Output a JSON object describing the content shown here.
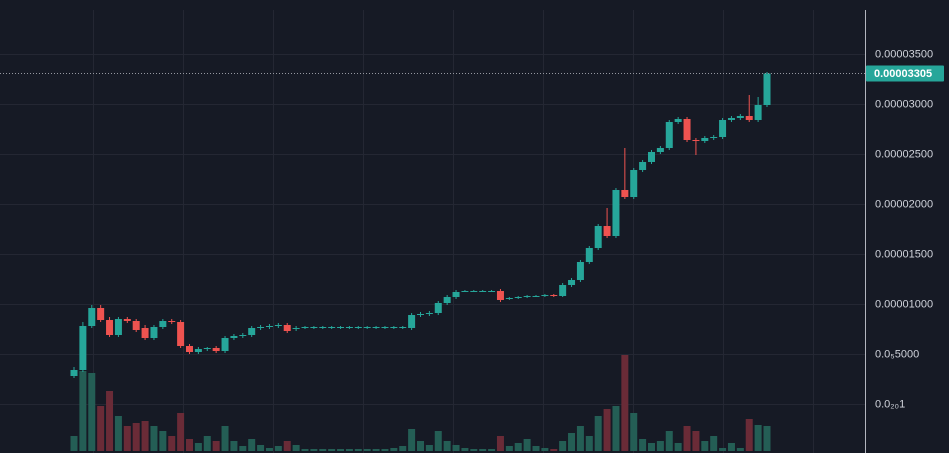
{
  "chart_data": {
    "type": "candlestick",
    "up_color": "#26a69a",
    "down_color": "#ef5350",
    "volume_up_color": "#245e55",
    "volume_down_color": "#6a2b37",
    "grid": true,
    "ylim": [
      -4.9e-06,
      4.04e-05
    ],
    "yticks": [
      {
        "value": 3.5e-05,
        "label": "0.00003500"
      },
      {
        "value": 3e-05,
        "label": "0.00003000"
      },
      {
        "value": 2.5e-05,
        "label": "0.00002500"
      },
      {
        "value": 2e-05,
        "label": "0.00002000"
      },
      {
        "value": 1.5e-05,
        "label": "0.00001500"
      },
      {
        "value": 1e-05,
        "label": "0.00001000"
      },
      {
        "value": 5e-06,
        "label": "0.0₅5000"
      },
      {
        "value": 1e-21,
        "label": "0.0₂₀1"
      }
    ],
    "price_line": {
      "value": 3.305e-05,
      "label": "0.00003305"
    },
    "open": [
      2.8e-06,
      3.4e-06,
      7.8e-06,
      9.6e-06,
      8.4e-06,
      6.9e-06,
      8.5e-06,
      8.3e-06,
      7.6e-06,
      6.6e-06,
      7.7e-06,
      8.3e-06,
      8.2e-06,
      5.8e-06,
      5.2e-06,
      5.5e-06,
      5.6e-06,
      5.3e-06,
      6.6e-06,
      6.8e-06,
      6.9e-06,
      7.6e-06,
      7.7e-06,
      7.8e-06,
      7.9e-06,
      7.5e-06,
      7.6e-06,
      7.6e-06,
      7.6e-06,
      7.6e-06,
      7.6e-06,
      7.6e-06,
      7.6e-06,
      7.6e-06,
      7.6e-06,
      7.6e-06,
      7.6e-06,
      7.6e-06,
      7.6e-06,
      8.9e-06,
      9e-06,
      9.1e-06,
      1.01e-05,
      1.07e-05,
      1.13e-05,
      1.13e-05,
      1.13e-05,
      1.13e-05,
      1.13e-05,
      1.05e-05,
      1.06e-05,
      1.07e-05,
      1.08e-05,
      1.08e-05,
      1.09e-05,
      1.08e-05,
      1.19e-05,
      1.24e-05,
      1.42e-05,
      1.56e-05,
      1.78e-05,
      1.68e-05,
      2.14e-05,
      2.07e-05,
      2.34e-05,
      2.42e-05,
      2.52e-05,
      2.56e-05,
      2.82e-05,
      2.85e-05,
      2.64e-05,
      2.63e-05,
      2.66e-05,
      2.67e-05,
      2.84e-05,
      2.86e-05,
      2.88e-05,
      2.84e-05,
      2.99e-05
    ],
    "close": [
      3.4e-06,
      7.8e-06,
      9.6e-06,
      8.4e-06,
      6.9e-06,
      8.5e-06,
      8.3e-06,
      7.4e-06,
      6.6e-06,
      7.7e-06,
      8.3e-06,
      8.2e-06,
      5.8e-06,
      5.2e-06,
      5.5e-06,
      5.6e-06,
      5.3e-06,
      6.6e-06,
      6.8e-06,
      6.9e-06,
      7.6e-06,
      7.7e-06,
      7.8e-06,
      7.9e-06,
      7.3e-06,
      7.6e-06,
      7.7e-06,
      7.7e-06,
      7.7e-06,
      7.7e-06,
      7.7e-06,
      7.7e-06,
      7.7e-06,
      7.7e-06,
      7.7e-06,
      7.7e-06,
      7.7e-06,
      7.7e-06,
      8.9e-06,
      9e-06,
      9.1e-06,
      1.01e-05,
      1.07e-05,
      1.12e-05,
      1.13e-05,
      1.13e-05,
      1.13e-05,
      1.13e-05,
      1.04e-05,
      1.06e-05,
      1.07e-05,
      1.08e-05,
      1.08e-05,
      1.09e-05,
      1.08e-05,
      1.19e-05,
      1.24e-05,
      1.42e-05,
      1.56e-05,
      1.78e-05,
      1.68e-05,
      2.14e-05,
      2.07e-05,
      2.34e-05,
      2.42e-05,
      2.52e-05,
      2.56e-05,
      2.82e-05,
      2.85e-05,
      2.64e-05,
      2.63e-05,
      2.66e-05,
      2.67e-05,
      2.84e-05,
      2.86e-05,
      2.88e-05,
      2.84e-05,
      2.99e-05,
      3.305e-05
    ],
    "high": [
      3.7e-06,
      8.2e-06,
      9.9e-06,
      9.9e-06,
      8.7e-06,
      8.7e-06,
      8.7e-06,
      8.5e-06,
      7.9e-06,
      7.9e-06,
      8.5e-06,
      8.5e-06,
      8.4e-06,
      6e-06,
      5.7e-06,
      5.7e-06,
      5.8e-06,
      6.8e-06,
      7e-06,
      7.1e-06,
      7.8e-06,
      7.9e-06,
      8e-06,
      8.1e-06,
      8.1e-06,
      7.8e-06,
      7.8e-06,
      7.8e-06,
      7.8e-06,
      7.8e-06,
      7.8e-06,
      7.8e-06,
      7.8e-06,
      7.8e-06,
      7.8e-06,
      7.8e-06,
      7.8e-06,
      7.8e-06,
      9.1e-06,
      9.2e-06,
      9.3e-06,
      1.03e-05,
      1.09e-05,
      1.14e-05,
      1.14e-05,
      1.14e-05,
      1.14e-05,
      1.14e-05,
      1.15e-05,
      1.07e-05,
      1.08e-05,
      1.09e-05,
      1.09e-05,
      1.1e-05,
      1.1e-05,
      1.21e-05,
      1.26e-05,
      1.44e-05,
      1.58e-05,
      1.8e-05,
      1.96e-05,
      2.16e-05,
      2.56e-05,
      2.36e-05,
      2.44e-05,
      2.54e-05,
      2.58e-05,
      2.84e-05,
      2.87e-05,
      2.87e-05,
      2.66e-05,
      2.68e-05,
      2.69e-05,
      2.86e-05,
      2.88e-05,
      2.9e-05,
      3.09e-05,
      3.07e-05,
      3.32e-05
    ],
    "low": [
      2.6e-06,
      3.2e-06,
      7.6e-06,
      8.2e-06,
      6.7e-06,
      6.7e-06,
      8.1e-06,
      7.2e-06,
      6.4e-06,
      6.4e-06,
      7.5e-06,
      8e-06,
      5.6e-06,
      5e-06,
      5e-06,
      5.3e-06,
      5.1e-06,
      5.1e-06,
      6.4e-06,
      6.6e-06,
      6.7e-06,
      7.4e-06,
      7.5e-06,
      7.6e-06,
      7.1e-06,
      7.3e-06,
      7.5e-06,
      7.5e-06,
      7.5e-06,
      7.5e-06,
      7.5e-06,
      7.5e-06,
      7.5e-06,
      7.5e-06,
      7.5e-06,
      7.5e-06,
      7.5e-06,
      7.5e-06,
      7.4e-06,
      8.7e-06,
      8.8e-06,
      8.9e-06,
      9.9e-06,
      1.05e-05,
      1.12e-05,
      1.12e-05,
      1.12e-05,
      1.12e-05,
      1.02e-05,
      1.04e-05,
      1.05e-05,
      1.06e-05,
      1.07e-05,
      1.07e-05,
      1.07e-05,
      1.07e-05,
      1.17e-05,
      1.22e-05,
      1.4e-05,
      1.54e-05,
      1.66e-05,
      1.66e-05,
      2.05e-05,
      2.05e-05,
      2.32e-05,
      2.4e-05,
      2.5e-05,
      2.54e-05,
      2.8e-05,
      2.62e-05,
      2.49e-05,
      2.61e-05,
      2.64e-05,
      2.65e-05,
      2.82e-05,
      2.84e-05,
      2.82e-05,
      2.82e-05,
      2.97e-05
    ],
    "volume": [
      15,
      80,
      78,
      45,
      60,
      35,
      25,
      28,
      30,
      25,
      20,
      15,
      38,
      12,
      8,
      15,
      10,
      25,
      10,
      5,
      12,
      6,
      3,
      5,
      10,
      6,
      2,
      2,
      2,
      2,
      2,
      2,
      2,
      2,
      2,
      2,
      3,
      5,
      22,
      10,
      6,
      20,
      10,
      6,
      3,
      2,
      2,
      2,
      15,
      5,
      8,
      12,
      5,
      3,
      2,
      10,
      18,
      25,
      15,
      35,
      42,
      45,
      96,
      38,
      12,
      8,
      10,
      20,
      8,
      25,
      20,
      10,
      15,
      3,
      8,
      3,
      32,
      26,
      25
    ]
  }
}
